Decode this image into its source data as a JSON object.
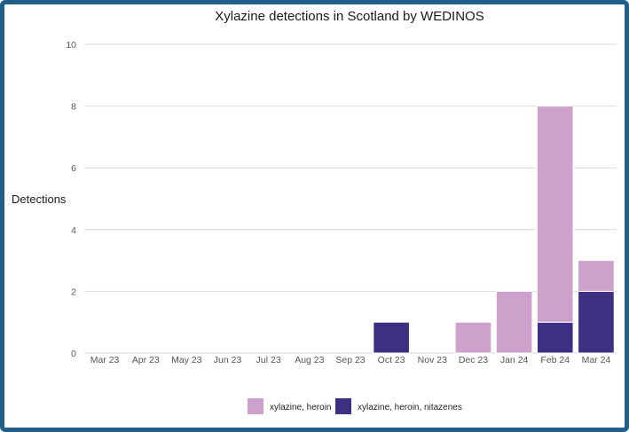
{
  "chart_data": {
    "type": "bar",
    "stacked": true,
    "title": "Xylazine detections in Scotland by WEDINOS",
    "xlabel": "",
    "ylabel": "Detections",
    "ylim": [
      0,
      10
    ],
    "yticks": [
      0,
      2,
      4,
      6,
      8,
      10
    ],
    "grid": true,
    "legend_position": "bottom",
    "categories": [
      "Mar 23",
      "Apr 23",
      "May 23",
      "Jun 23",
      "Jul 23",
      "Aug 23",
      "Sep 23",
      "Oct 23",
      "Nov 23",
      "Dec 23",
      "Jan 24",
      "Feb 24",
      "Mar 24"
    ],
    "series": [
      {
        "name": "xylazine, heroin, nitazenes",
        "color": "#3d2f82",
        "values": [
          0,
          0,
          0,
          0,
          0,
          0,
          0,
          1,
          0,
          0,
          0,
          1,
          2
        ]
      },
      {
        "name": "xylazine, heroin",
        "color": "#cda1cb",
        "values": [
          0,
          0,
          0,
          0,
          0,
          0,
          0,
          0,
          0,
          1,
          2,
          7,
          1
        ]
      }
    ],
    "legend_order": [
      1,
      0
    ]
  },
  "colors": {
    "frame": "#1f5f8b"
  }
}
